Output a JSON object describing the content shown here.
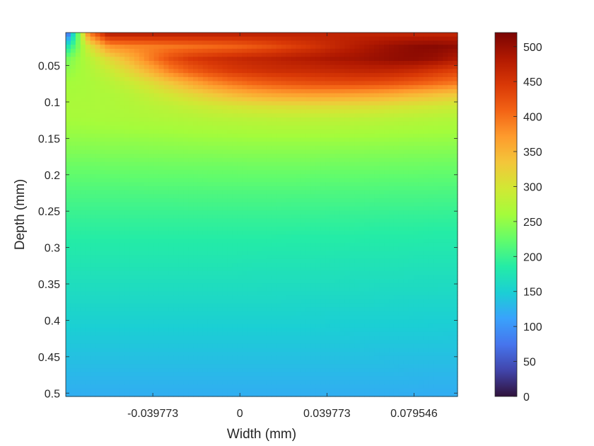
{
  "chart_data": {
    "type": "heatmap",
    "xlabel": "Width (mm)",
    "ylabel": "Depth (mm)",
    "xlim": [
      -0.079546,
      0.0994325
    ],
    "ylim": [
      0.5046,
      0.0047
    ],
    "x_ticks": [
      -0.039773,
      0,
      0.039773,
      0.079546
    ],
    "x_tick_labels": [
      "-0.039773",
      "0",
      "0.039773",
      "0.079546"
    ],
    "y_ticks": [
      0.05,
      0.1,
      0.15,
      0.2,
      0.25,
      0.3,
      0.35,
      0.4,
      0.45,
      0.5
    ],
    "y_tick_labels": [
      "0.05",
      "0.1",
      "0.15",
      "0.2",
      "0.25",
      "0.3",
      "0.35",
      "0.4",
      "0.45",
      "0.5"
    ],
    "y_direction": "reversed",
    "colormap": "turbo",
    "colorbar": {
      "limits": [
        0,
        520
      ],
      "ticks": [
        0,
        50,
        100,
        150,
        200,
        250,
        300,
        350,
        400,
        450,
        500
      ],
      "tick_labels": [
        "0",
        "50",
        "100",
        "150",
        "200",
        "250",
        "300",
        "350",
        "400",
        "450",
        "500"
      ],
      "placement": "right"
    },
    "grid": false,
    "colorbar_stops": [
      "#30123b",
      "#4145ab",
      "#4675ed",
      "#39a2fc",
      "#1bcfd4",
      "#24eca6",
      "#61fc6c",
      "#a4fc3b",
      "#d1e834",
      "#f3c63a",
      "#fe9b2d",
      "#f36315",
      "#d93806",
      "#b11901",
      "#7a0403"
    ],
    "values": [
      [
        90,
        380,
        470,
        470,
        470,
        470,
        470,
        470,
        470,
        470,
        470,
        470,
        470,
        470,
        470,
        470,
        470,
        470,
        470,
        470
      ],
      [
        180,
        300,
        375,
        385,
        390,
        395,
        400,
        405,
        410,
        418,
        428,
        440,
        452,
        465,
        478,
        490,
        500,
        508,
        510,
        505
      ],
      [
        235,
        275,
        315,
        350,
        390,
        425,
        445,
        455,
        462,
        468,
        472,
        478,
        482,
        488,
        492,
        498,
        504,
        506,
        500,
        485
      ],
      [
        250,
        268,
        290,
        318,
        352,
        390,
        415,
        432,
        445,
        452,
        458,
        460,
        462,
        465,
        468,
        470,
        468,
        462,
        450,
        438
      ],
      [
        260,
        265,
        275,
        290,
        310,
        335,
        360,
        382,
        398,
        410,
        418,
        424,
        428,
        430,
        432,
        430,
        426,
        418,
        408,
        398
      ],
      [
        263,
        265,
        268,
        275,
        287,
        300,
        315,
        330,
        344,
        355,
        362,
        366,
        368,
        368,
        365,
        362,
        356,
        348,
        340,
        332
      ],
      [
        265,
        266,
        267,
        270,
        275,
        280,
        287,
        294,
        300,
        305,
        308,
        310,
        311,
        311,
        310,
        308,
        304,
        300,
        296,
        292
      ],
      [
        262,
        263,
        264,
        266,
        268,
        270,
        272,
        275,
        277,
        279,
        280,
        281,
        281,
        281,
        280,
        279,
        277,
        275,
        273,
        271
      ],
      [
        255,
        256,
        257,
        258,
        259,
        260,
        262,
        263,
        264,
        265,
        266,
        266,
        266,
        266,
        265,
        264,
        263,
        262,
        261,
        260
      ],
      [
        247,
        247,
        248,
        248,
        249,
        250,
        251,
        252,
        252,
        253,
        253,
        253,
        253,
        253,
        252,
        252,
        251,
        250,
        250,
        249
      ],
      [
        238,
        238,
        239,
        239,
        240,
        240,
        241,
        241,
        242,
        242,
        242,
        242,
        242,
        241,
        241,
        240,
        240,
        239,
        239,
        238
      ],
      [
        228,
        228,
        229,
        229,
        229,
        230,
        230,
        230,
        230,
        231,
        231,
        231,
        231,
        230,
        230,
        230,
        229,
        229,
        228,
        228
      ],
      [
        220,
        220,
        220,
        221,
        221,
        221,
        221,
        222,
        222,
        222,
        222,
        222,
        221,
        221,
        221,
        220,
        220,
        220,
        219,
        219
      ],
      [
        212,
        212,
        212,
        212,
        213,
        213,
        213,
        213,
        213,
        213,
        213,
        213,
        213,
        212,
        212,
        212,
        211,
        211,
        211,
        210
      ],
      [
        205,
        205,
        205,
        205,
        205,
        205,
        206,
        206,
        206,
        206,
        206,
        205,
        205,
        205,
        205,
        204,
        204,
        204,
        203,
        203
      ],
      [
        198,
        198,
        198,
        198,
        198,
        198,
        198,
        198,
        198,
        198,
        198,
        198,
        198,
        197,
        197,
        197,
        196,
        196,
        196,
        195
      ],
      [
        192,
        192,
        192,
        192,
        192,
        192,
        192,
        192,
        192,
        192,
        192,
        192,
        191,
        191,
        191,
        190,
        190,
        190,
        189,
        189
      ],
      [
        186,
        186,
        186,
        186,
        186,
        186,
        186,
        186,
        186,
        186,
        186,
        185,
        185,
        185,
        185,
        184,
        184,
        184,
        183,
        183
      ],
      [
        181,
        181,
        181,
        181,
        181,
        181,
        181,
        181,
        181,
        181,
        180,
        180,
        180,
        180,
        179,
        179,
        179,
        178,
        178,
        178
      ],
      [
        176,
        176,
        176,
        176,
        176,
        176,
        176,
        176,
        176,
        175,
        175,
        175,
        175,
        174,
        174,
        174,
        174,
        173,
        173,
        173
      ],
      [
        171,
        171,
        171,
        171,
        171,
        171,
        171,
        171,
        171,
        170,
        170,
        170,
        170,
        170,
        169,
        169,
        169,
        168,
        168,
        168
      ],
      [
        166,
        166,
        166,
        166,
        166,
        166,
        166,
        166,
        166,
        166,
        165,
        165,
        165,
        165,
        165,
        164,
        164,
        164,
        164,
        163
      ],
      [
        161,
        161,
        161,
        161,
        161,
        161,
        161,
        161,
        161,
        161,
        161,
        160,
        160,
        160,
        160,
        160,
        159,
        159,
        159,
        159
      ],
      [
        156,
        156,
        156,
        156,
        156,
        156,
        156,
        156,
        156,
        156,
        156,
        156,
        155,
        155,
        155,
        155,
        155,
        154,
        154,
        154
      ],
      [
        151,
        151,
        151,
        151,
        151,
        151,
        151,
        151,
        151,
        151,
        151,
        151,
        151,
        150,
        150,
        150,
        150,
        150,
        149,
        149
      ],
      [
        146,
        146,
        146,
        146,
        146,
        146,
        146,
        146,
        146,
        146,
        146,
        146,
        146,
        146,
        145,
        145,
        145,
        145,
        145,
        144
      ],
      [
        141,
        141,
        141,
        141,
        141,
        141,
        141,
        141,
        141,
        141,
        141,
        141,
        141,
        141,
        141,
        140,
        140,
        140,
        140,
        140
      ],
      [
        136,
        136,
        136,
        136,
        136,
        136,
        136,
        136,
        136,
        136,
        136,
        136,
        136,
        136,
        136,
        136,
        135,
        135,
        135,
        135
      ],
      [
        131,
        131,
        131,
        131,
        131,
        131,
        131,
        131,
        131,
        131,
        131,
        131,
        131,
        131,
        131,
        131,
        131,
        130,
        130,
        130
      ],
      [
        126,
        126,
        126,
        126,
        126,
        126,
        126,
        126,
        126,
        126,
        126,
        126,
        126,
        126,
        126,
        126,
        126,
        126,
        125,
        125
      ],
      [
        122,
        122,
        122,
        122,
        122,
        122,
        122,
        122,
        122,
        122,
        122,
        122,
        122,
        122,
        122,
        122,
        122,
        121,
        121,
        121
      ]
    ]
  }
}
